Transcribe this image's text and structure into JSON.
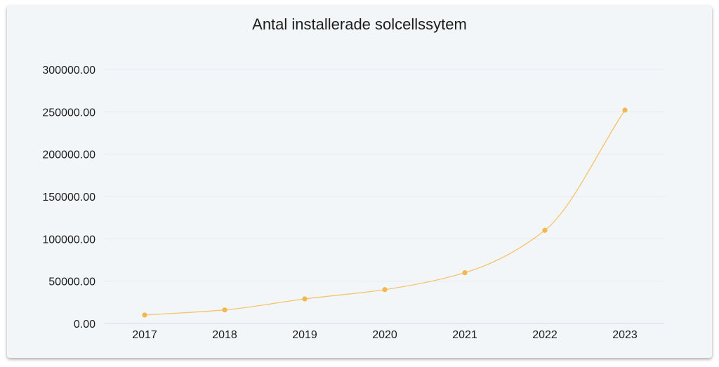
{
  "chart_data": {
    "type": "line",
    "title": "Antal installerade solcellssytem",
    "x": [
      "2017",
      "2018",
      "2019",
      "2020",
      "2021",
      "2022",
      "2023"
    ],
    "series": [
      {
        "values": [
          10000,
          16000,
          29000,
          40000,
          60000,
          110000,
          252000
        ]
      }
    ],
    "yticks": [
      "0.00",
      "50000.00",
      "100000.00",
      "150000.00",
      "200000.00",
      "250000.00",
      "300000.00"
    ],
    "ylim": [
      0,
      300000
    ],
    "grid": true,
    "line_color": "#f5c36b",
    "marker_color": "#f2b84b",
    "grid_color": "#e6e9ee"
  }
}
